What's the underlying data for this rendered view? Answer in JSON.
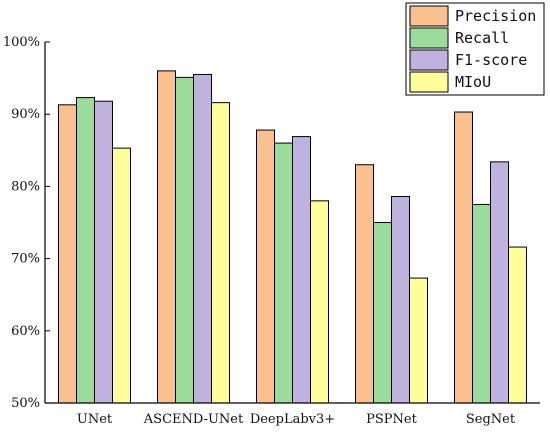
{
  "chart_data": {
    "type": "bar",
    "categories": [
      "UNet",
      "ASCEND-UNet",
      "DeepLabv3+",
      "PSPNet",
      "SegNet"
    ],
    "series": [
      {
        "name": "Precision",
        "color": "#FAC08F",
        "values": [
          91.3,
          96.0,
          87.8,
          83.0,
          90.3
        ]
      },
      {
        "name": "Recall",
        "color": "#9BDB9B",
        "values": [
          92.3,
          95.1,
          86.0,
          75.0,
          77.5
        ]
      },
      {
        "name": "F1-score",
        "color": "#BFB2DE",
        "values": [
          91.8,
          95.5,
          86.9,
          78.6,
          83.4
        ]
      },
      {
        "name": "MIoU",
        "color": "#FEFE9A",
        "values": [
          85.3,
          91.6,
          78.0,
          67.3,
          71.6
        ]
      }
    ],
    "yticks": [
      "50%",
      "60%",
      "70%",
      "80%",
      "90%",
      "100%"
    ],
    "ylim": [
      50,
      100
    ],
    "title": "",
    "xlabel": "",
    "ylabel": "",
    "legend_position": "top-right",
    "grid": false
  }
}
